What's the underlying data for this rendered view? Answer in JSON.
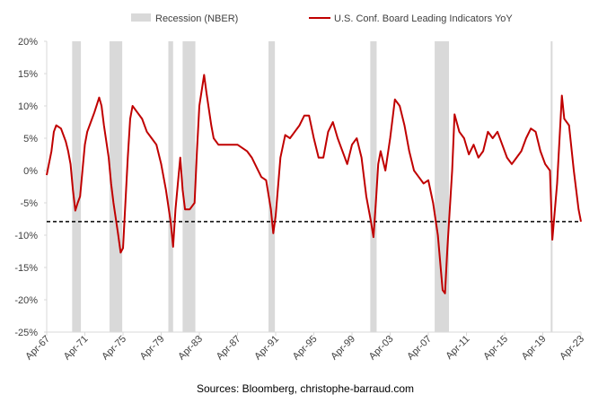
{
  "chart_data": {
    "type": "line",
    "source": "Sources: Bloomberg, christophe-barraud.com",
    "recessions": {
      "name": "Recession (NBER)",
      "color": "#d9d9d9",
      "periods": [
        [
          "1969-12",
          "1970-11"
        ],
        [
          "1973-11",
          "1975-03"
        ],
        [
          "1980-01",
          "1980-07"
        ],
        [
          "1981-07",
          "1982-11"
        ],
        [
          "1990-07",
          "1991-03"
        ],
        [
          "2001-03",
          "2001-11"
        ],
        [
          "2007-12",
          "2009-06"
        ],
        [
          "2020-02",
          "2020-04"
        ]
      ]
    },
    "reference_line": {
      "value": -7.9,
      "color": "#000000"
    },
    "x": [
      "1967-04",
      "1967-10",
      "1968-01",
      "1968-04",
      "1968-10",
      "1969-01",
      "1969-04",
      "1969-07",
      "1969-10",
      "1970-01",
      "1970-04",
      "1970-07",
      "1970-10",
      "1971-01",
      "1971-04",
      "1971-07",
      "1971-10",
      "1972-04",
      "1972-10",
      "1973-01",
      "1973-04",
      "1973-10",
      "1974-01",
      "1974-04",
      "1974-10",
      "1975-01",
      "1975-04",
      "1975-07",
      "1975-10",
      "1976-01",
      "1976-04",
      "1976-10",
      "1977-04",
      "1977-10",
      "1978-04",
      "1978-10",
      "1979-04",
      "1979-10",
      "1980-04",
      "1980-07",
      "1980-10",
      "1981-01",
      "1981-04",
      "1981-07",
      "1981-10",
      "1982-04",
      "1982-10",
      "1983-01",
      "1983-04",
      "1983-10",
      "1984-01",
      "1984-07",
      "1984-10",
      "1985-04",
      "1985-10",
      "1986-04",
      "1986-10",
      "1987-04",
      "1987-10",
      "1988-04",
      "1988-10",
      "1989-04",
      "1989-10",
      "1990-04",
      "1990-10",
      "1991-01",
      "1991-04",
      "1991-10",
      "1992-04",
      "1992-10",
      "1993-04",
      "1993-10",
      "1994-04",
      "1994-10",
      "1995-04",
      "1995-10",
      "1996-04",
      "1996-10",
      "1997-04",
      "1997-10",
      "1998-04",
      "1998-10",
      "1999-04",
      "1999-10",
      "2000-04",
      "2000-10",
      "2001-04",
      "2001-07",
      "2001-10",
      "2002-01",
      "2002-04",
      "2002-10",
      "2003-04",
      "2003-10",
      "2004-04",
      "2004-10",
      "2005-04",
      "2005-10",
      "2006-04",
      "2006-10",
      "2007-04",
      "2007-10",
      "2008-04",
      "2008-10",
      "2009-01",
      "2009-04",
      "2009-10",
      "2010-01",
      "2010-07",
      "2011-01",
      "2011-07",
      "2012-01",
      "2012-07",
      "2013-01",
      "2013-07",
      "2014-01",
      "2014-07",
      "2015-01",
      "2015-07",
      "2016-01",
      "2016-07",
      "2017-01",
      "2017-07",
      "2018-01",
      "2018-07",
      "2019-01",
      "2019-07",
      "2020-01",
      "2020-04",
      "2020-10",
      "2021-04",
      "2021-07",
      "2022-01",
      "2022-07",
      "2022-10",
      "2023-01",
      "2023-04"
    ],
    "series": [
      {
        "name": "U.S. Conf. Board Leading Indicators YoY",
        "color": "#c00000",
        "values": [
          -0.7,
          3,
          6,
          7,
          6.5,
          5.5,
          4.5,
          3,
          1,
          -3,
          -6.2,
          -5,
          -4,
          0,
          4,
          6,
          7,
          9,
          11.3,
          10,
          7,
          2,
          -2,
          -5,
          -10,
          -12.7,
          -12,
          -5,
          2,
          8,
          10,
          9,
          8,
          6,
          5,
          4,
          1,
          -3,
          -8,
          -11.8,
          -6,
          -2,
          2,
          -3,
          -6,
          -6,
          -5,
          3,
          10,
          14.8,
          12,
          7,
          5,
          4,
          4,
          4,
          4,
          4,
          3.5,
          3,
          2,
          0.5,
          -1,
          -1.5,
          -6,
          -9.7,
          -7,
          2,
          5.5,
          5,
          6,
          7,
          8.5,
          8.5,
          5,
          2,
          2,
          6,
          7.5,
          5,
          3,
          1,
          4,
          5,
          2,
          -4,
          -8,
          -10.3,
          -5,
          1,
          3,
          0,
          5,
          11,
          10,
          7,
          3,
          0,
          -1,
          -2,
          -1.5,
          -5,
          -10,
          -18.5,
          -19,
          -12,
          0,
          8.7,
          6,
          5,
          2.5,
          4,
          2,
          3,
          6,
          5,
          6,
          4,
          2,
          1,
          2,
          3,
          5,
          6.5,
          6,
          3,
          1,
          0,
          -10.7,
          -2,
          11.6,
          8,
          7,
          0,
          -3,
          -6,
          -7.9
        ]
      }
    ],
    "xlim": [
      "1967-04",
      "2023-04"
    ],
    "xticks": [
      {
        "value": "1967-04",
        "label": "Apr-67"
      },
      {
        "value": "1971-04",
        "label": "Apr-71"
      },
      {
        "value": "1975-04",
        "label": "Apr-75"
      },
      {
        "value": "1979-04",
        "label": "Apr-79"
      },
      {
        "value": "1983-04",
        "label": "Apr-83"
      },
      {
        "value": "1987-04",
        "label": "Apr-87"
      },
      {
        "value": "1991-04",
        "label": "Apr-91"
      },
      {
        "value": "1995-04",
        "label": "Apr-95"
      },
      {
        "value": "1999-04",
        "label": "Apr-99"
      },
      {
        "value": "2003-04",
        "label": "Apr-03"
      },
      {
        "value": "2007-04",
        "label": "Apr-07"
      },
      {
        "value": "2011-04",
        "label": "Apr-11"
      },
      {
        "value": "2015-04",
        "label": "Apr-15"
      },
      {
        "value": "2019-04",
        "label": "Apr-19"
      },
      {
        "value": "2023-04",
        "label": "Apr-23"
      }
    ],
    "ylim": [
      -25,
      20
    ],
    "yticks": [
      {
        "value": 20,
        "label": "20%"
      },
      {
        "value": 15,
        "label": "15%"
      },
      {
        "value": 10,
        "label": "10%"
      },
      {
        "value": 5,
        "label": "5%"
      },
      {
        "value": 0,
        "label": "0%"
      },
      {
        "value": -5,
        "label": "-5%"
      },
      {
        "value": -10,
        "label": "-10%"
      },
      {
        "value": -15,
        "label": "-15%"
      },
      {
        "value": -20,
        "label": "-20%"
      },
      {
        "value": -25,
        "label": "-25%"
      }
    ]
  }
}
